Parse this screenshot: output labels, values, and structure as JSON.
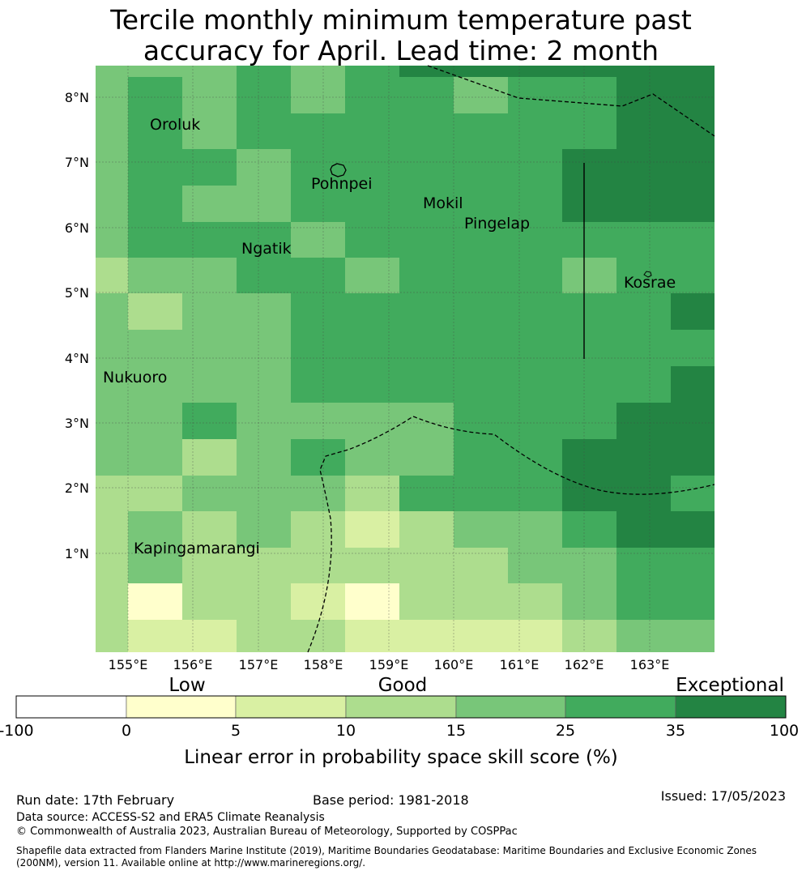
{
  "title": {
    "line1": "Tercile monthly minimum temperature past",
    "line2": "accuracy for April. Lead time: 2 month"
  },
  "map": {
    "lat_labels": [
      "8°N",
      "7°N",
      "6°N",
      "5°N",
      "4°N",
      "3°N",
      "2°N",
      "1°N"
    ],
    "lon_labels": [
      "155°E",
      "156°E",
      "157°E",
      "158°E",
      "159°E",
      "160°E",
      "161°E",
      "162°E",
      "163°E"
    ],
    "place_names": [
      "Oroluk",
      "Pohnpei",
      "Mokil",
      "Pingelap",
      "Ngatik",
      "Kosrae",
      "Nukuoro",
      "Kapingamarangi"
    ]
  },
  "colorbar": {
    "category_low": "Low",
    "category_good": "Good",
    "category_exceptional": "Exceptional",
    "ticks": [
      "-100",
      "0",
      "5",
      "10",
      "15",
      "25",
      "35",
      "100"
    ],
    "colors": [
      "#ffffff",
      "#ffffcc",
      "#d9f0a3",
      "#addd8e",
      "#78c679",
      "#41ab5d",
      "#238443"
    ],
    "label": "Linear error in probability space skill score (%)"
  },
  "footer": {
    "run_date": "Run date: 17th February",
    "base_period": "Base period: 1981-2018",
    "issued": "Issued: 17/05/2023",
    "data_source": "Data source: ACCESS-S2 and ERA5 Climate Reanalysis",
    "copyright": "© Commonwealth of Australia 2023, Australian Bureau of Meteorology, Supported by COSPPac",
    "shapefile_line1": "Shapefile data extracted from Flanders Marine Institute (2019), Maritime Boundaries Geodatabase: Maritime Boundaries and Exclusive Economic Zones",
    "shapefile_line2": "(200NM), version 11. Available online at http://www.marineregions.org/."
  }
}
